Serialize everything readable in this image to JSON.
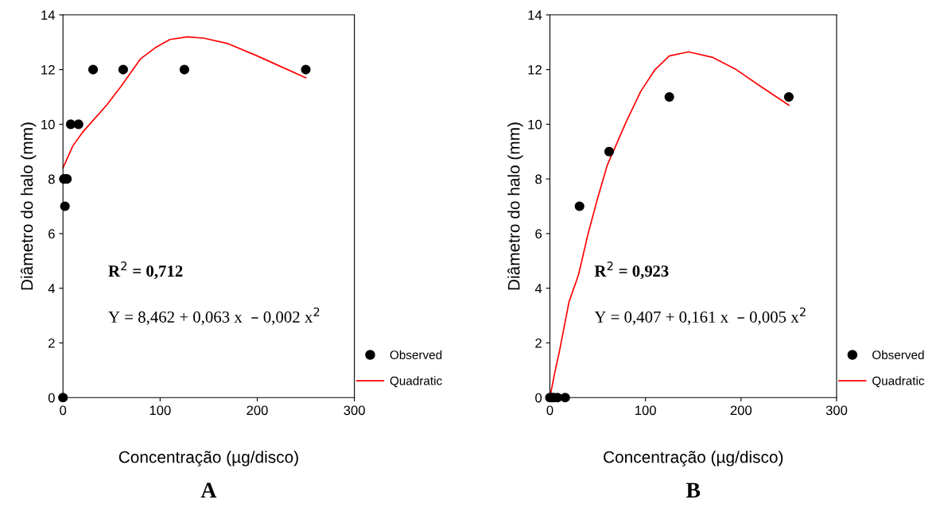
{
  "chart_data": [
    {
      "type": "scatter",
      "title": "A",
      "xlabel": "Concentração (µg/disco)",
      "ylabel": "Diâmetro do halo (mm)",
      "xlim": [
        0,
        300
      ],
      "xticks": [
        0,
        100,
        200,
        300
      ],
      "ylim": [
        0,
        14
      ],
      "yticks": [
        0,
        2,
        4,
        6,
        8,
        10,
        12,
        14
      ],
      "grid": false,
      "legend": "right",
      "annotations": [
        "R$^{2}$ = 0,712",
        "Y = 8,462 + 0,063 x  – 0,002 x$^{2}$"
      ],
      "series": [
        {
          "name": "Observed",
          "color": "#000000",
          "marker": "circle",
          "x": [
            0,
            1,
            2,
            4,
            8,
            16,
            31,
            62,
            125,
            250
          ],
          "values": [
            0,
            8,
            7,
            8,
            10,
            10,
            12,
            12,
            12,
            12
          ]
        },
        {
          "type": "line",
          "name": "Quadratic",
          "color": "#ff0000",
          "marker": "none",
          "x": [
            0,
            5,
            10,
            20,
            30,
            45,
            60,
            80,
            95,
            110,
            128,
            145,
            170,
            200,
            225,
            250
          ],
          "values": [
            8.4,
            8.8,
            9.2,
            9.7,
            10.1,
            10.7,
            11.4,
            12.4,
            12.8,
            13.1,
            13.2,
            13.15,
            12.95,
            12.5,
            12.1,
            11.7
          ]
        }
      ]
    },
    {
      "type": "scatter",
      "title": "B",
      "xlabel": "Concentração (µg/disco)",
      "ylabel": "Diâmetro do halo (mm)",
      "xlim": [
        0,
        300
      ],
      "xticks": [
        0,
        100,
        200,
        300
      ],
      "ylim": [
        0,
        14
      ],
      "yticks": [
        0,
        2,
        4,
        6,
        8,
        10,
        12,
        14
      ],
      "grid": false,
      "legend": "right",
      "annotations": [
        "R$^{2}$ = 0,923",
        "Y = 0,407 + 0,161 x  – 0,005 x$^{2}$"
      ],
      "series": [
        {
          "name": "Observed",
          "color": "#000000",
          "marker": "circle",
          "x": [
            0,
            2,
            4,
            8,
            16,
            31,
            62,
            125,
            250
          ],
          "values": [
            0,
            0,
            0,
            0,
            0,
            7,
            9,
            11,
            11
          ]
        },
        {
          "type": "line",
          "name": "Quadratic",
          "color": "#ff0000",
          "marker": "none",
          "x": [
            0,
            5,
            10,
            20,
            30,
            40,
            50,
            60,
            80,
            95,
            110,
            125,
            145,
            170,
            195,
            220,
            250
          ],
          "values": [
            0,
            0.9,
            1.7,
            3.5,
            4.5,
            6,
            7.3,
            8.5,
            10.1,
            11.2,
            12,
            12.5,
            12.65,
            12.45,
            12,
            11.4,
            10.7
          ]
        }
      ]
    }
  ]
}
